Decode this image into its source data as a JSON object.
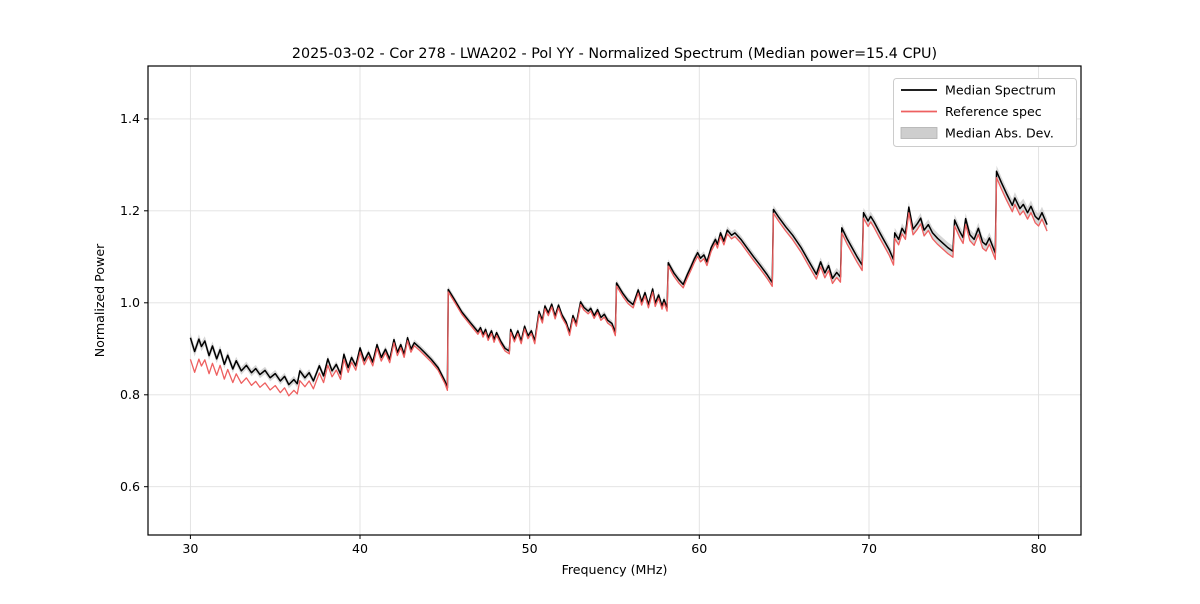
{
  "figure": {
    "background": "#ffffff"
  },
  "chart_data": {
    "type": "line",
    "title": "2025-03-02 - Cor 278 - LWA202 - Pol YY - Normalized Spectrum (Median power=15.4 CPU)",
    "xlabel": "Frequency (MHz)",
    "ylabel": "Normalized Power",
    "xlim": [
      27.5,
      82.5
    ],
    "ylim": [
      0.495,
      1.515
    ],
    "x_ticks": [
      30,
      40,
      50,
      60,
      70,
      80
    ],
    "x_tick_labels": [
      "30",
      "40",
      "50",
      "60",
      "70",
      "80"
    ],
    "y_ticks": [
      0.6,
      0.8,
      1.0,
      1.2,
      1.4
    ],
    "y_tick_labels": [
      "0.6",
      "0.8",
      "1.0",
      "1.2",
      "1.4"
    ],
    "grid": true,
    "grid_color": "#e0e0e0",
    "spine_color": "#000000",
    "legend": {
      "position": "upper right",
      "entries": [
        {
          "label": "Median Spectrum",
          "marker": "line",
          "color": "#000000"
        },
        {
          "label": "Reference spec",
          "marker": "line",
          "color": "#ee6060"
        },
        {
          "label": "Median Abs. Dev.",
          "marker": "patch",
          "color": "#c9c9c9"
        }
      ]
    },
    "series": [
      {
        "name": "Median Spectrum",
        "type": "line",
        "color": "#000000",
        "linewidth": 1.5,
        "points": [
          [
            30.0,
            0.924
          ],
          [
            30.25,
            0.894
          ],
          [
            30.5,
            0.921
          ],
          [
            30.65,
            0.905
          ],
          [
            30.85,
            0.917
          ],
          [
            31.1,
            0.885
          ],
          [
            31.3,
            0.906
          ],
          [
            31.55,
            0.878
          ],
          [
            31.75,
            0.898
          ],
          [
            32.0,
            0.866
          ],
          [
            32.2,
            0.886
          ],
          [
            32.5,
            0.856
          ],
          [
            32.7,
            0.874
          ],
          [
            33.0,
            0.852
          ],
          [
            33.3,
            0.864
          ],
          [
            33.6,
            0.848
          ],
          [
            33.85,
            0.857
          ],
          [
            34.1,
            0.844
          ],
          [
            34.4,
            0.853
          ],
          [
            34.7,
            0.837
          ],
          [
            35.0,
            0.846
          ],
          [
            35.3,
            0.83
          ],
          [
            35.55,
            0.84
          ],
          [
            35.8,
            0.822
          ],
          [
            36.1,
            0.833
          ],
          [
            36.3,
            0.824
          ],
          [
            36.45,
            0.852
          ],
          [
            36.75,
            0.837
          ],
          [
            37.0,
            0.848
          ],
          [
            37.25,
            0.83
          ],
          [
            37.6,
            0.863
          ],
          [
            37.85,
            0.841
          ],
          [
            38.1,
            0.878
          ],
          [
            38.35,
            0.852
          ],
          [
            38.6,
            0.866
          ],
          [
            38.85,
            0.845
          ],
          [
            39.05,
            0.888
          ],
          [
            39.3,
            0.859
          ],
          [
            39.5,
            0.881
          ],
          [
            39.75,
            0.863
          ],
          [
            40.0,
            0.902
          ],
          [
            40.25,
            0.874
          ],
          [
            40.5,
            0.892
          ],
          [
            40.75,
            0.871
          ],
          [
            41.0,
            0.909
          ],
          [
            41.25,
            0.881
          ],
          [
            41.5,
            0.899
          ],
          [
            41.75,
            0.877
          ],
          [
            42.0,
            0.92
          ],
          [
            42.2,
            0.892
          ],
          [
            42.4,
            0.909
          ],
          [
            42.6,
            0.888
          ],
          [
            42.8,
            0.924
          ],
          [
            43.0,
            0.899
          ],
          [
            43.2,
            0.913
          ],
          [
            43.5,
            0.903
          ],
          [
            43.8,
            0.892
          ],
          [
            44.2,
            0.877
          ],
          [
            44.6,
            0.859
          ],
          [
            45.0,
            0.83
          ],
          [
            45.15,
            0.815
          ],
          [
            45.2,
            1.029
          ],
          [
            45.55,
            1.008
          ],
          [
            46.0,
            0.98
          ],
          [
            46.5,
            0.957
          ],
          [
            46.95,
            0.937
          ],
          [
            47.1,
            0.946
          ],
          [
            47.25,
            0.931
          ],
          [
            47.4,
            0.942
          ],
          [
            47.55,
            0.924
          ],
          [
            47.75,
            0.939
          ],
          [
            47.9,
            0.92
          ],
          [
            48.05,
            0.935
          ],
          [
            48.3,
            0.916
          ],
          [
            48.55,
            0.901
          ],
          [
            48.8,
            0.895
          ],
          [
            48.88,
            0.942
          ],
          [
            49.1,
            0.921
          ],
          [
            49.3,
            0.939
          ],
          [
            49.5,
            0.917
          ],
          [
            49.7,
            0.949
          ],
          [
            49.9,
            0.928
          ],
          [
            50.1,
            0.939
          ],
          [
            50.3,
            0.917
          ],
          [
            50.55,
            0.981
          ],
          [
            50.75,
            0.962
          ],
          [
            50.9,
            0.993
          ],
          [
            51.1,
            0.978
          ],
          [
            51.3,
            0.997
          ],
          [
            51.5,
            0.971
          ],
          [
            51.7,
            0.995
          ],
          [
            51.9,
            0.974
          ],
          [
            52.15,
            0.958
          ],
          [
            52.35,
            0.935
          ],
          [
            52.55,
            0.972
          ],
          [
            52.75,
            0.955
          ],
          [
            53.0,
            1.002
          ],
          [
            53.2,
            0.99
          ],
          [
            53.45,
            0.982
          ],
          [
            53.6,
            0.988
          ],
          [
            53.8,
            0.972
          ],
          [
            54.0,
            0.985
          ],
          [
            54.2,
            0.968
          ],
          [
            54.4,
            0.975
          ],
          [
            54.6,
            0.962
          ],
          [
            54.85,
            0.955
          ],
          [
            55.05,
            0.935
          ],
          [
            55.12,
            1.043
          ],
          [
            55.5,
            1.02
          ],
          [
            55.8,
            1.005
          ],
          [
            56.1,
            0.996
          ],
          [
            56.4,
            1.028
          ],
          [
            56.6,
            1.002
          ],
          [
            56.8,
            1.022
          ],
          [
            57.0,
            0.996
          ],
          [
            57.25,
            1.03
          ],
          [
            57.4,
            0.999
          ],
          [
            57.6,
            1.017
          ],
          [
            57.8,
            0.993
          ],
          [
            57.92,
            1.007
          ],
          [
            58.1,
            0.989
          ],
          [
            58.17,
            1.087
          ],
          [
            58.5,
            1.065
          ],
          [
            58.8,
            1.05
          ],
          [
            59.05,
            1.04
          ],
          [
            59.3,
            1.062
          ],
          [
            59.5,
            1.078
          ],
          [
            59.7,
            1.095
          ],
          [
            59.9,
            1.109
          ],
          [
            60.07,
            1.097
          ],
          [
            60.27,
            1.104
          ],
          [
            60.45,
            1.089
          ],
          [
            60.7,
            1.12
          ],
          [
            60.95,
            1.138
          ],
          [
            61.07,
            1.127
          ],
          [
            61.25,
            1.152
          ],
          [
            61.45,
            1.134
          ],
          [
            61.65,
            1.158
          ],
          [
            61.9,
            1.147
          ],
          [
            62.1,
            1.152
          ],
          [
            62.45,
            1.138
          ],
          [
            62.8,
            1.12
          ],
          [
            63.2,
            1.1
          ],
          [
            63.6,
            1.081
          ],
          [
            64.0,
            1.061
          ],
          [
            64.3,
            1.044
          ],
          [
            64.37,
            1.203
          ],
          [
            64.7,
            1.185
          ],
          [
            65.1,
            1.165
          ],
          [
            65.5,
            1.147
          ],
          [
            66.0,
            1.12
          ],
          [
            66.4,
            1.094
          ],
          [
            66.9,
            1.062
          ],
          [
            67.15,
            1.089
          ],
          [
            67.4,
            1.065
          ],
          [
            67.62,
            1.081
          ],
          [
            67.85,
            1.053
          ],
          [
            68.1,
            1.066
          ],
          [
            68.32,
            1.056
          ],
          [
            68.4,
            1.163
          ],
          [
            68.7,
            1.14
          ],
          [
            69.0,
            1.12
          ],
          [
            69.3,
            1.1
          ],
          [
            69.6,
            1.082
          ],
          [
            69.68,
            1.196
          ],
          [
            69.95,
            1.178
          ],
          [
            70.1,
            1.188
          ],
          [
            70.3,
            1.176
          ],
          [
            70.6,
            1.155
          ],
          [
            70.9,
            1.135
          ],
          [
            71.2,
            1.115
          ],
          [
            71.45,
            1.094
          ],
          [
            71.52,
            1.152
          ],
          [
            71.75,
            1.138
          ],
          [
            71.95,
            1.162
          ],
          [
            72.15,
            1.15
          ],
          [
            72.35,
            1.208
          ],
          [
            72.6,
            1.16
          ],
          [
            72.85,
            1.172
          ],
          [
            73.05,
            1.184
          ],
          [
            73.25,
            1.158
          ],
          [
            73.5,
            1.17
          ],
          [
            73.75,
            1.152
          ],
          [
            74.05,
            1.14
          ],
          [
            74.35,
            1.13
          ],
          [
            74.65,
            1.12
          ],
          [
            74.95,
            1.112
          ],
          [
            75.05,
            1.18
          ],
          [
            75.35,
            1.155
          ],
          [
            75.55,
            1.142
          ],
          [
            75.7,
            1.183
          ],
          [
            75.95,
            1.148
          ],
          [
            76.2,
            1.138
          ],
          [
            76.45,
            1.162
          ],
          [
            76.7,
            1.132
          ],
          [
            76.9,
            1.126
          ],
          [
            77.1,
            1.141
          ],
          [
            77.28,
            1.124
          ],
          [
            77.45,
            1.108
          ],
          [
            77.52,
            1.286
          ],
          [
            77.8,
            1.262
          ],
          [
            78.1,
            1.238
          ],
          [
            78.45,
            1.212
          ],
          [
            78.6,
            1.228
          ],
          [
            78.9,
            1.205
          ],
          [
            79.1,
            1.214
          ],
          [
            79.35,
            1.196
          ],
          [
            79.55,
            1.21
          ],
          [
            79.8,
            1.188
          ],
          [
            80.0,
            1.181
          ],
          [
            80.2,
            1.196
          ],
          [
            80.5,
            1.17
          ]
        ]
      },
      {
        "name": "Reference spec",
        "type": "line",
        "color": "#ee6060",
        "linewidth": 1.3,
        "offset_below_median": {
          "x": [
            30,
            31,
            32,
            33,
            34,
            35,
            36,
            37,
            38,
            39,
            40,
            42,
            44,
            46,
            48,
            50,
            52,
            54,
            56,
            58,
            60,
            62,
            64,
            66,
            68,
            70,
            72,
            74,
            76,
            78,
            80.5
          ],
          "d": [
            0.047,
            0.04,
            0.032,
            0.027,
            0.028,
            0.026,
            0.024,
            0.018,
            0.014,
            0.011,
            0.009,
            0.007,
            0.006,
            0.005,
            0.006,
            0.006,
            0.006,
            0.006,
            0.007,
            0.007,
            0.008,
            0.008,
            0.008,
            0.01,
            0.011,
            0.012,
            0.012,
            0.013,
            0.013,
            0.014,
            0.014
          ]
        }
      },
      {
        "name": "Median Abs. Dev.",
        "type": "band",
        "color": "#c2c2c2",
        "opacity": 0.65,
        "halfwidth": {
          "x": [
            30,
            32,
            34,
            36,
            40,
            45,
            50,
            55,
            60,
            64,
            68,
            72,
            76,
            80.5
          ],
          "d": [
            0.011,
            0.009,
            0.008,
            0.008,
            0.007,
            0.007,
            0.006,
            0.007,
            0.008,
            0.009,
            0.01,
            0.011,
            0.012,
            0.013
          ]
        }
      }
    ]
  }
}
